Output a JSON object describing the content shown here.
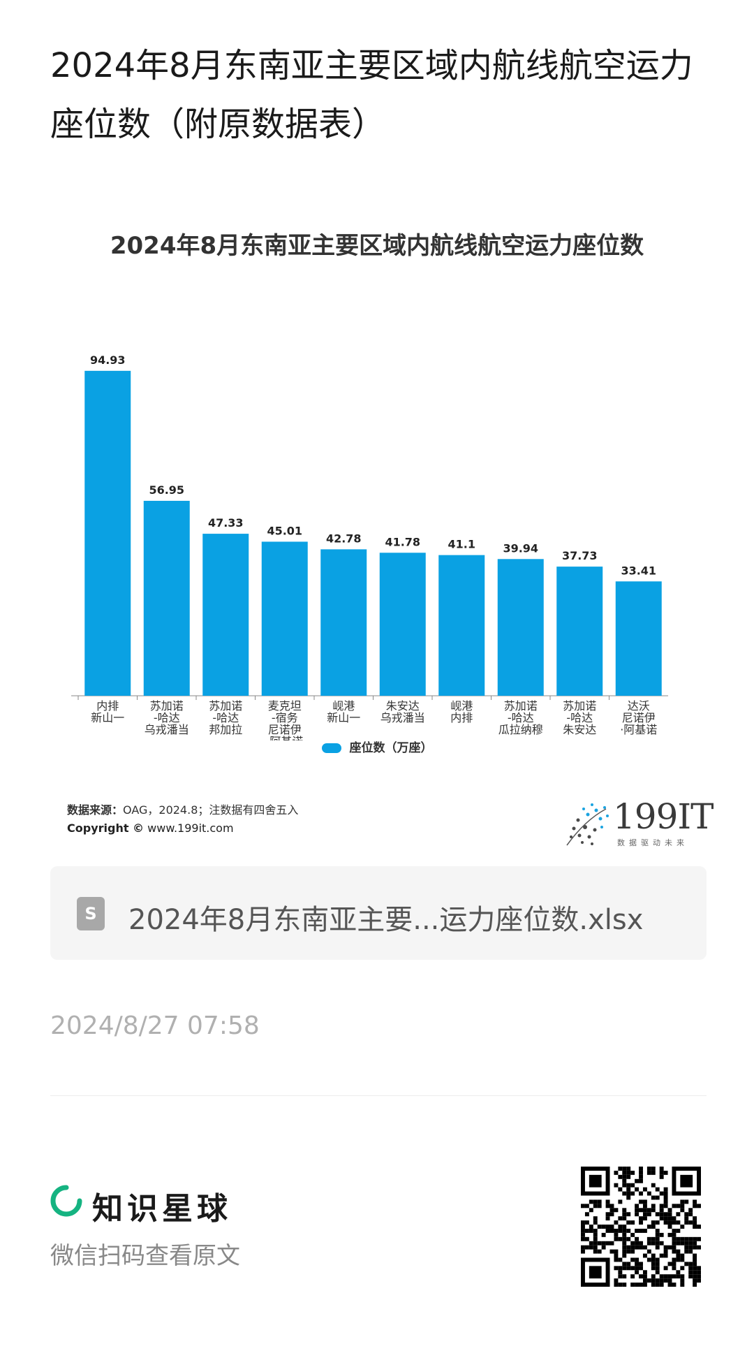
{
  "page": {
    "title": "2024年8月东南亚主要区域内航线航空运力座位数（附原数据表）"
  },
  "chart_data": {
    "type": "bar",
    "title": "2024年8月东南亚主要区域内航线航空运力座位数",
    "categories": [
      [
        "内排",
        "新山一"
      ],
      [
        "苏加诺",
        "-哈达",
        "乌戎潘当"
      ],
      [
        "苏加诺",
        "-哈达",
        "邦加拉"
      ],
      [
        "麦克坦",
        "-宿务",
        "尼诺伊",
        "·阿基诺"
      ],
      [
        "岘港",
        "新山一"
      ],
      [
        "朱安达",
        "乌戎潘当"
      ],
      [
        "岘港",
        "内排"
      ],
      [
        "苏加诺",
        "-哈达",
        "瓜拉纳穆"
      ],
      [
        "苏加诺",
        "-哈达",
        "朱安达"
      ],
      [
        "达沃",
        "尼诺伊",
        "·阿基诺"
      ]
    ],
    "series": [
      {
        "name": "座位数（万座）",
        "values": [
          94.93,
          56.95,
          47.33,
          45.01,
          42.78,
          41.78,
          41.1,
          39.94,
          37.73,
          33.41
        ],
        "labels": [
          "94.93",
          "56.95",
          "47.33",
          "45.01",
          "42.78",
          "41.78",
          "41.1",
          "39.94",
          "37.73",
          "33.41"
        ]
      }
    ],
    "ylim": [
      0,
      100
    ],
    "grid": false,
    "legend_position": "bottom",
    "bar_color": "#0aa1e3"
  },
  "chart_footer": {
    "source_label": "数据来源：",
    "source_text": "OAG，2024.8；注数据有四舍五入",
    "copyright_label": "Copyright ©",
    "copyright_text": "www.199it.com",
    "logo_text": "199IT",
    "logo_sub": "数据驱动未来"
  },
  "attachment": {
    "icon": "spreadsheet-file-icon",
    "file_name": "2024年8月东南亚主要...运力座位数.xlsx"
  },
  "timestamp": "2024/8/27 07:58",
  "footer": {
    "brand_icon": "zsxq-ring-icon",
    "brand_color": "#15b381",
    "brand_name": "知识星球",
    "scan_text": "微信扫码查看原文"
  }
}
